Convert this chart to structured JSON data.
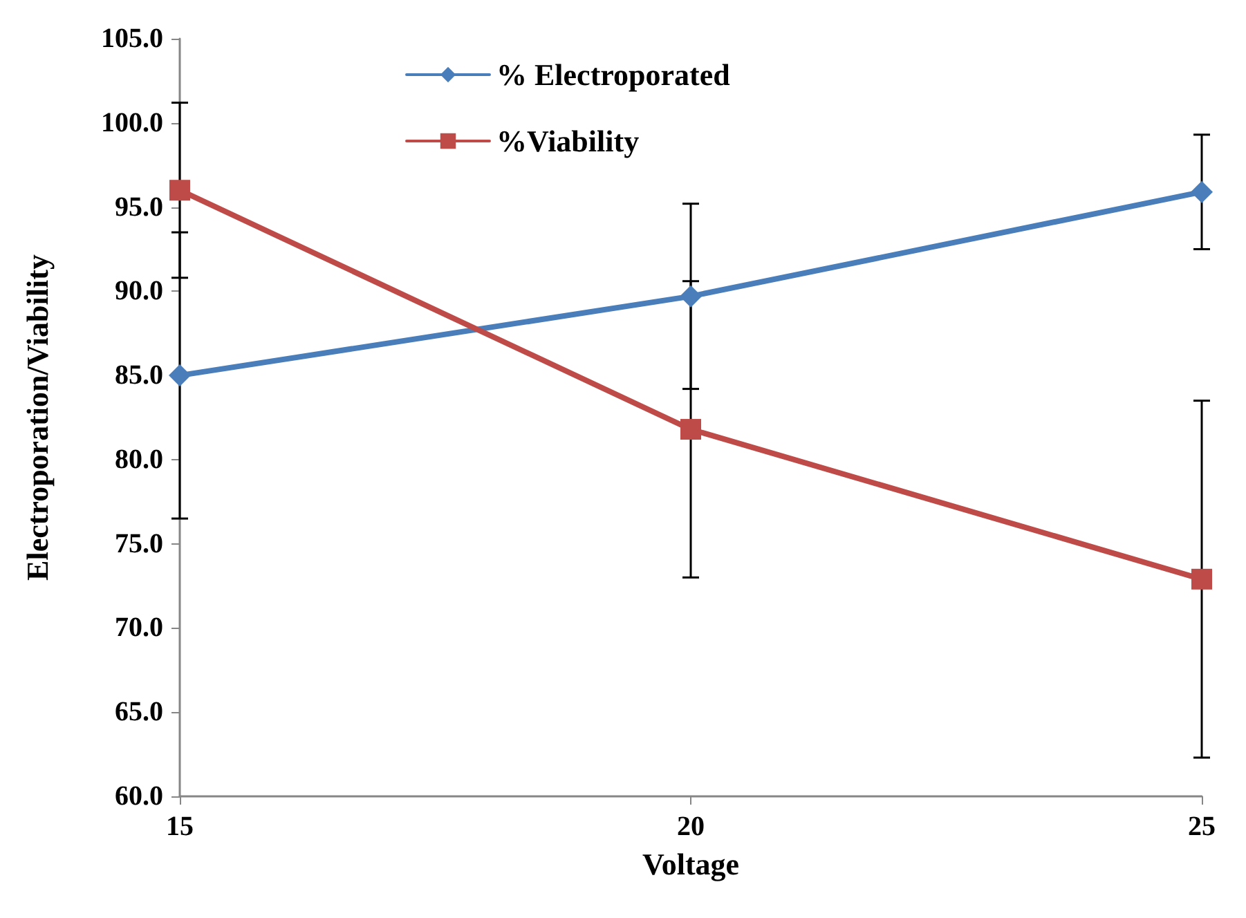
{
  "chart_data": {
    "type": "line",
    "xlabel": "Voltage",
    "ylabel": "Electroporation/Viability",
    "x": [
      15,
      20,
      25
    ],
    "series": [
      {
        "name": "% Electroporated",
        "color": "#4a7ebb",
        "marker": "diamond",
        "values": [
          85.0,
          89.7,
          95.9
        ],
        "errors": [
          8.5,
          5.5,
          3.4
        ]
      },
      {
        "name": "%Viability",
        "color": "#be4b48",
        "marker": "square",
        "values": [
          96.0,
          81.8,
          72.9
        ],
        "errors": [
          5.2,
          8.8,
          10.6
        ]
      }
    ],
    "xlim": [
      15,
      25
    ],
    "xticks": [
      15,
      20,
      25
    ],
    "ylim": [
      60,
      105
    ],
    "yticks": [
      {
        "value": 60,
        "label": "60.0"
      },
      {
        "value": 65,
        "label": "65.0"
      },
      {
        "value": 70,
        "label": "70.0"
      },
      {
        "value": 75,
        "label": "75.0"
      },
      {
        "value": 80,
        "label": "80.0"
      },
      {
        "value": 85,
        "label": "85.0"
      },
      {
        "value": 90,
        "label": "90.0"
      },
      {
        "value": 95,
        "label": "95.0"
      },
      {
        "value": 100,
        "label": "100.0"
      },
      {
        "value": 105,
        "label": "105.0"
      }
    ],
    "grid": false,
    "legend": "top"
  }
}
